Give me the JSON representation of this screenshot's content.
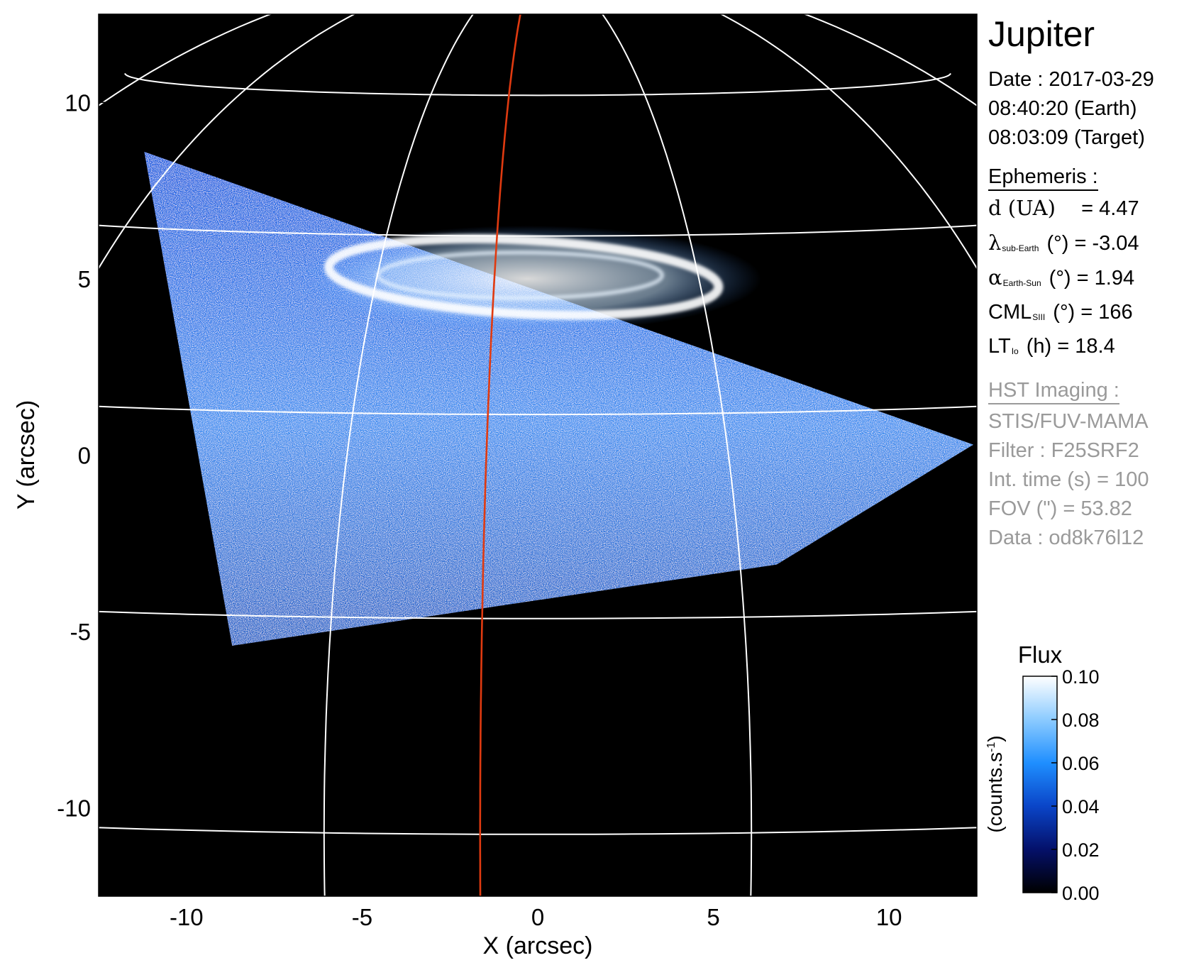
{
  "chart_data": {
    "type": "heatmap",
    "title": "Jupiter",
    "xlabel": "X (arcsec)",
    "ylabel": "Y (arcsec)",
    "xlim": [
      -12.5,
      12.5
    ],
    "ylim": [
      -12.5,
      12.5
    ],
    "xticks": [
      -10,
      -5,
      0,
      5,
      10
    ],
    "yticks": [
      -10,
      -5,
      0,
      5,
      10
    ],
    "grid": "planetocentric latitude/longitude grid (white)",
    "highlight_meridian_color": "#e03a10",
    "colorbar": {
      "title": "Flux",
      "label": "(counts.s-1)",
      "label_base": "(counts.s",
      "label_sup": "-1",
      "label_end": ")",
      "range": [
        0.0,
        0.1
      ],
      "ticks": [
        "0.00",
        "0.02",
        "0.04",
        "0.06",
        "0.08",
        "0.10"
      ],
      "colormap": [
        "#000000",
        "#04106a",
        "#0a45c8",
        "#1f8fff",
        "#8ccbff",
        "#ffffff"
      ]
    },
    "detector_footprint_corners_arcsec": [
      [
        -11.2,
        8.6
      ],
      [
        12.4,
        0.3
      ],
      [
        6.8,
        -3.1
      ],
      [
        -8.7,
        -5.4
      ]
    ],
    "auroral_oval": "bright main emission ring near Y = 4.5 to 6 arcsec"
  },
  "info": {
    "target": "Jupiter",
    "date": "Date : 2017-03-29",
    "time_earth": "08:40:20 (Earth)",
    "time_target": "08:03:09 (Target)",
    "ephemeris_header": "Ephemeris :",
    "ephemeris": [
      {
        "sym": "d (UA)",
        "sub": "",
        "rest": "    = 4.47"
      },
      {
        "sym": "λ",
        "sub": "sub-Earth",
        "rest": " (°) = -3.04"
      },
      {
        "sym": "α",
        "sub": "Earth-Sun",
        "rest": " (°) = 1.94"
      },
      {
        "sym": "CML",
        "sub": "SIII",
        "rest": " (°) = 166"
      },
      {
        "sym": "LT",
        "sub": "Io",
        "rest": " (h) = 18.4"
      }
    ],
    "hst_header": "HST Imaging :",
    "hst": [
      "STIS/FUV-MAMA",
      "Filter : F25SRF2",
      "Int. time (s) = 100",
      "FOV (\") = 53.82",
      "Data : od8k76l12"
    ]
  }
}
